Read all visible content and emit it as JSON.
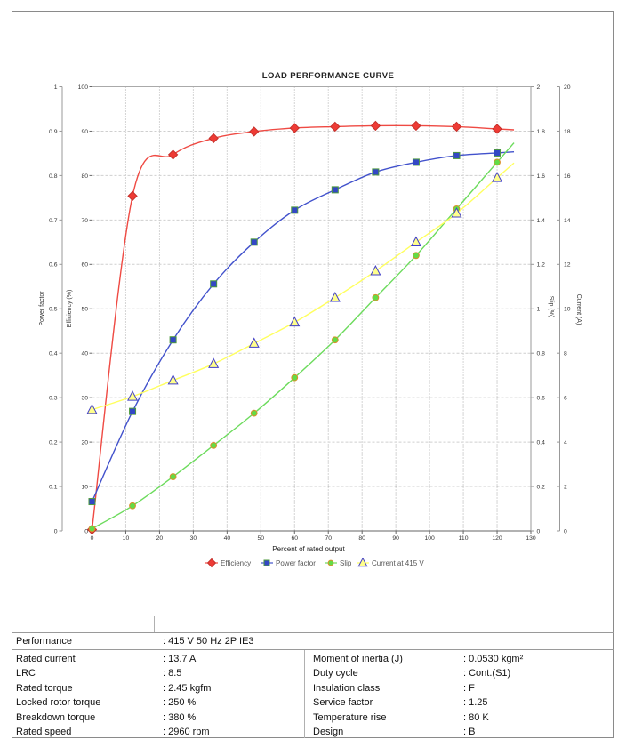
{
  "chart_data": {
    "type": "line",
    "title": "LOAD PERFORMANCE CURVE",
    "xlabel": "Percent of rated output",
    "xlim": [
      0,
      130
    ],
    "x_tick_step": 10,
    "grid": true,
    "legend_position": "bottom",
    "x": [
      0,
      12,
      24,
      36,
      48,
      60,
      72,
      84,
      96,
      108,
      120
    ],
    "axes": [
      {
        "id": "power_factor",
        "label": "Power factor",
        "side": "left",
        "range": [
          0,
          1
        ],
        "step": 0.1
      },
      {
        "id": "efficiency",
        "label": "Efficiency (%)",
        "side": "left",
        "range": [
          0,
          100
        ],
        "step": 10
      },
      {
        "id": "slip",
        "label": "Slip (%)",
        "side": "right",
        "range": [
          0,
          2
        ],
        "step": 0.2
      },
      {
        "id": "current",
        "label": "Current (A)",
        "side": "right",
        "range": [
          0,
          20
        ],
        "step": 2
      }
    ],
    "series": [
      {
        "name": "Efficiency",
        "axis": "efficiency",
        "marker": "diamond",
        "line_color": "#ef4a43",
        "fill": "#ee3b35",
        "edge": "#c4302b",
        "values": [
          0.3,
          75.4,
          84.7,
          88.4,
          89.9,
          90.7,
          91.0,
          91.2,
          91.2,
          91.0,
          90.5
        ]
      },
      {
        "name": "Power factor",
        "axis": "power_factor",
        "marker": "square",
        "line_color": "#4252cc",
        "fill": "#3347c5",
        "edge": "#4e9a3e",
        "values": [
          0.066,
          0.269,
          0.43,
          0.556,
          0.65,
          0.722,
          0.768,
          0.808,
          0.83,
          0.845,
          0.851
        ]
      },
      {
        "name": "Slip",
        "axis": "slip",
        "marker": "circle",
        "line_color": "#6cdb5c",
        "fill": "#63dc46",
        "edge": "#d98f2b",
        "values": [
          0.01,
          0.113,
          0.244,
          0.385,
          0.53,
          0.69,
          0.86,
          1.05,
          1.24,
          1.45,
          1.66
        ]
      },
      {
        "name": "Current at 415 V",
        "axis": "current",
        "marker": "triangle",
        "line_color": "#ffff5e",
        "fill": "#ffff8c",
        "edge": "#4240c8",
        "values": [
          5.46,
          6.05,
          6.78,
          7.52,
          8.44,
          9.39,
          10.5,
          11.7,
          13.0,
          14.3,
          15.9
        ]
      }
    ]
  },
  "info_table": {
    "header": {
      "label": "Performance",
      "value": ": 415 V 50 Hz 2P IE3"
    },
    "left": [
      {
        "label": "Rated current",
        "value": ": 13.7 A"
      },
      {
        "label": "LRC",
        "value": ": 8.5"
      },
      {
        "label": "Rated torque",
        "value": ": 2.45 kgfm"
      },
      {
        "label": "Locked rotor torque",
        "value": ": 250 %"
      },
      {
        "label": "Breakdown torque",
        "value": ": 380 %"
      },
      {
        "label": "Rated speed",
        "value": ": 2960 rpm"
      }
    ],
    "right": [
      {
        "label": "Moment of inertia (J)",
        "value": ": 0.0530 kgm²"
      },
      {
        "label": "Duty cycle",
        "value": ": Cont.(S1)"
      },
      {
        "label": "Insulation class",
        "value": ": F"
      },
      {
        "label": "Service factor",
        "value": ": 1.25"
      },
      {
        "label": "Temperature rise",
        "value": ": 80 K"
      },
      {
        "label": "Design",
        "value": ": B"
      }
    ]
  }
}
